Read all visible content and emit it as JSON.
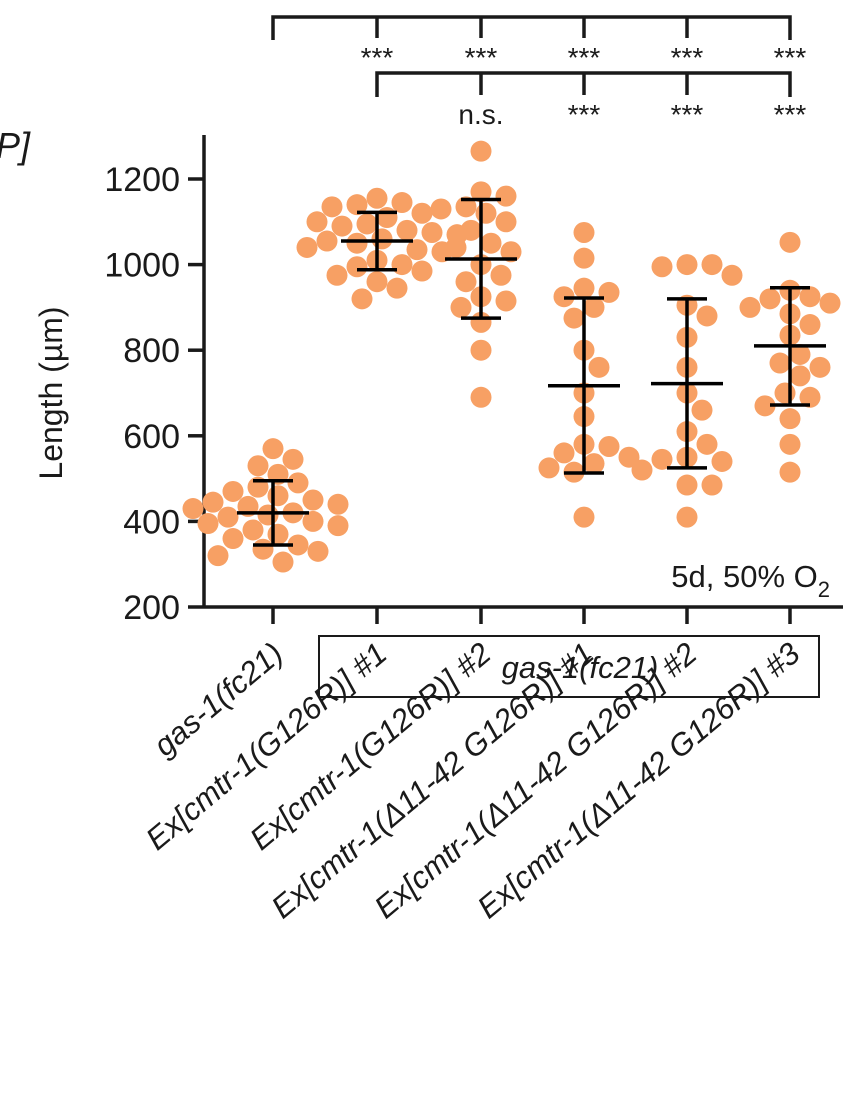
{
  "corner_label": "P]",
  "chart_data": {
    "type": "scatter",
    "ylabel": "Length (µm)",
    "ylim": [
      200,
      1300
    ],
    "yticks": [
      200,
      400,
      600,
      800,
      1000,
      1200
    ],
    "dot_color": "#f7a064",
    "bar_color": "#000000",
    "annotation": {
      "main": "5d, 50% O",
      "sub": "2"
    },
    "group_box_label": "gas-1(fc21)",
    "categories": [
      {
        "label": "gas-1(fc21)",
        "mean": 420,
        "sd_low": 345,
        "sd_high": 495,
        "points": [
          570,
          545,
          530,
          510,
          490,
          480,
          470,
          460,
          450,
          445,
          440,
          435,
          430,
          420,
          415,
          410,
          400,
          395,
          390,
          380,
          370,
          360,
          345,
          335,
          330,
          320,
          305
        ]
      },
      {
        "label": "Ex[cmtr-1(G126R)] #1",
        "mean": 1055,
        "sd_low": 988,
        "sd_high": 1122,
        "points": [
          1155,
          1145,
          1140,
          1135,
          1120,
          1110,
          1100,
          1095,
          1090,
          1080,
          1075,
          1070,
          1060,
          1055,
          1050,
          1040,
          1035,
          1030,
          1010,
          1000,
          995,
          985,
          975,
          960,
          945,
          920
        ]
      },
      {
        "label": "Ex[cmtr-1(G126R)] #2",
        "mean": 1013,
        "sd_low": 875,
        "sd_high": 1152,
        "points": [
          1265,
          1170,
          1160,
          1135,
          1130,
          1120,
          1100,
          1080,
          1050,
          1040,
          1030,
          1000,
          975,
          960,
          925,
          915,
          900,
          865,
          800,
          690
        ]
      },
      {
        "label": "Ex[cmtr-1(Δ11-42 G126R)] #1",
        "mean": 717,
        "sd_low": 513,
        "sd_high": 922,
        "points": [
          1075,
          1015,
          945,
          935,
          925,
          900,
          875,
          800,
          760,
          700,
          645,
          580,
          575,
          560,
          550,
          535,
          525,
          515,
          410
        ]
      },
      {
        "label": "Ex[cmtr-1(Δ11-42 G126R)] #2",
        "mean": 722,
        "sd_low": 525,
        "sd_high": 920,
        "points": [
          1000,
          1000,
          995,
          975,
          905,
          880,
          830,
          760,
          700,
          660,
          610,
          580,
          550,
          545,
          540,
          520,
          485,
          485,
          410
        ]
      },
      {
        "label": "Ex[cmtr-1(Δ11-42 G126R)] #3",
        "mean": 810,
        "sd_low": 672,
        "sd_high": 946,
        "points": [
          1052,
          940,
          925,
          920,
          910,
          900,
          885,
          860,
          835,
          790,
          770,
          760,
          740,
          700,
          690,
          670,
          640,
          580,
          515
        ]
      }
    ],
    "significance": {
      "row1": {
        "reference": "gas-1(fc21)",
        "labels": [
          "***",
          "***",
          "***",
          "***",
          "***"
        ]
      },
      "row2": {
        "reference": "Ex[cmtr-1(G126R)] #1",
        "labels": [
          "n.s.",
          "***",
          "***",
          "***"
        ]
      }
    }
  }
}
